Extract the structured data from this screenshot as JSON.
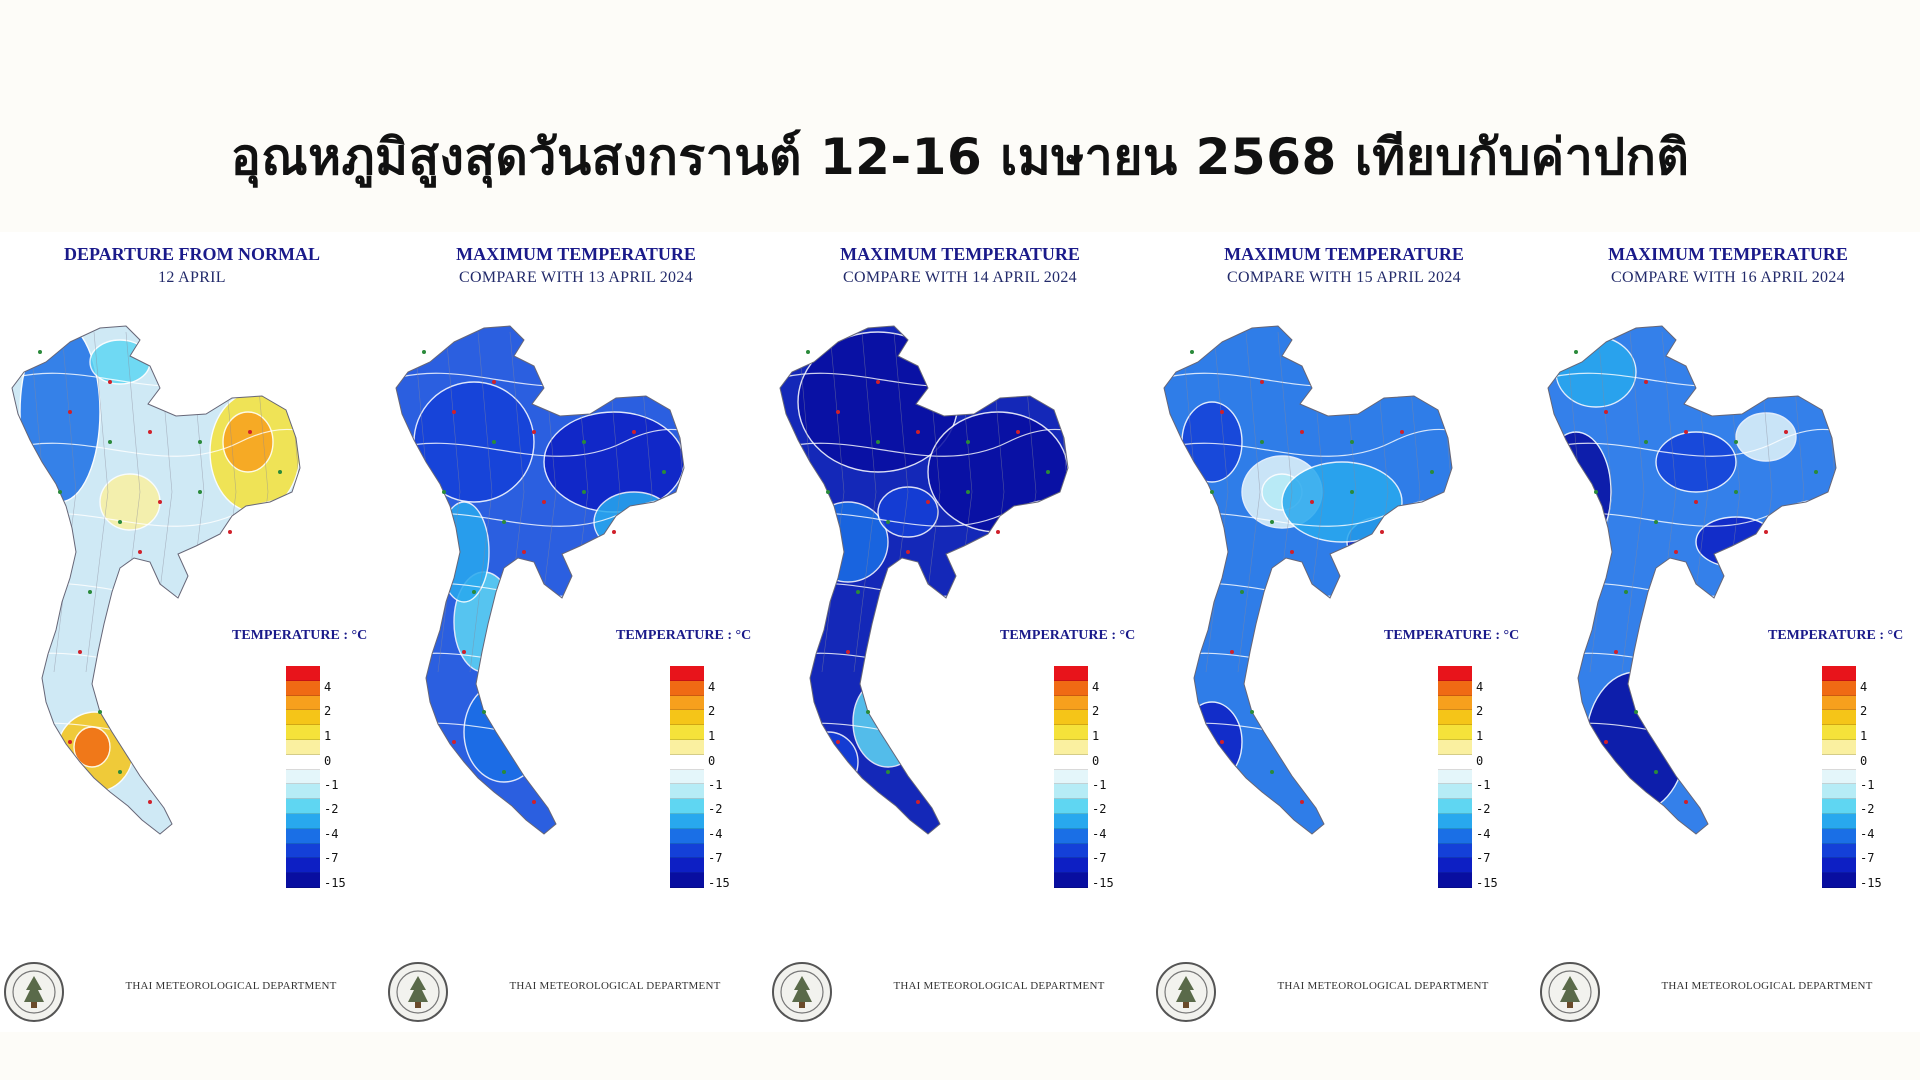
{
  "page": {
    "title": "อุณหภูมิสูงสุดวันสงกรานต์ 12-16 เมษายน 2568 เทียบกับค่าปกติ"
  },
  "panels": [
    {
      "title": "DEPARTURE FROM NORMAL",
      "subtitle": "12 APRIL",
      "legend_title": "TEMPERATURE : °C",
      "footer": "THAI METEOROLOGICAL DEPARTMENT",
      "dominant_tone": "mixed",
      "fill": "#cfe9f5"
    },
    {
      "title": "MAXIMUM TEMPERATURE",
      "subtitle": "COMPARE WITH 13  APRIL  2024",
      "legend_title": "TEMPERATURE : °C",
      "footer": "THAI METEOROLOGICAL DEPARTMENT",
      "dominant_tone": "blue",
      "fill": "#2b5fe0"
    },
    {
      "title": "MAXIMUM TEMPERATURE",
      "subtitle": "COMPARE WITH 14  APRIL  2024",
      "legend_title": "TEMPERATURE : °C",
      "footer": "THAI METEOROLOGICAL DEPARTMENT",
      "dominant_tone": "dark-blue",
      "fill": "#1428b8"
    },
    {
      "title": "MAXIMUM TEMPERATURE",
      "subtitle": "COMPARE WITH 15  APRIL  2024",
      "legend_title": "TEMPERATURE : °C",
      "footer": "THAI METEOROLOGICAL DEPARTMENT",
      "dominant_tone": "medium-blue",
      "fill": "#2f7de8"
    },
    {
      "title": "MAXIMUM TEMPERATURE",
      "subtitle": "COMPARE WITH 16  APRIL  2024",
      "legend_title": "TEMPERATURE : °C",
      "footer": "THAI METEOROLOGICAL DEPARTMENT",
      "dominant_tone": "medium-blue",
      "fill": "#3480ea"
    }
  ],
  "legend": {
    "colors": [
      "#e8141b",
      "#f06a14",
      "#f7a01d",
      "#f5c518",
      "#f5e23a",
      "#faf0a0",
      "#ffffff",
      "#e4f6fa",
      "#b6ecf6",
      "#5fd6f2",
      "#28a8ee",
      "#1a6fe6",
      "#1440d8",
      "#0d1fc4",
      "#080ea0"
    ],
    "labels": [
      "4",
      "2",
      "1",
      "0",
      "-1",
      "-2",
      "-4",
      "-7",
      "-15"
    ]
  },
  "colors": {
    "title_text": "#111111",
    "panel_title": "#1a1a8a",
    "contour": "#ffffff",
    "border": "#888899"
  },
  "icons": {
    "logo": "tmd-seal-icon"
  }
}
